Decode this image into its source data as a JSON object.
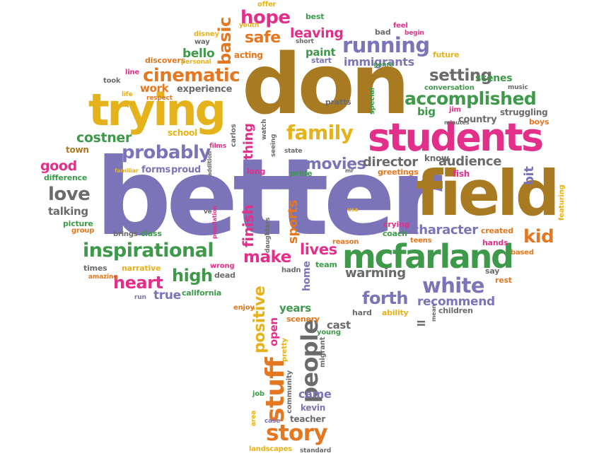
{
  "words": {
    "better": "better",
    "don": "don",
    "field": "field",
    "students": "students",
    "trying": "trying",
    "mcfarland": "mcfarland",
    "inspirational": "inspirational",
    "family": "family",
    "running": "running",
    "accomplished": "accomplished",
    "cinematic": "cinematic",
    "probably": "probably",
    "white": "white",
    "story": "story",
    "stuff": "stuff",
    "people": "people",
    "positive": "positive",
    "heart": "heart",
    "high": "high",
    "love": "love",
    "make": "make",
    "lives": "lives",
    "setting": "setting",
    "movies": "movies",
    "director": "director",
    "audience": "audience",
    "character": "character",
    "kid": "kid",
    "forth": "forth",
    "warming": "warming",
    "recommend": "recommend",
    "hope": "hope",
    "basic": "basic",
    "safe": "safe",
    "leaving": "leaving",
    "bello": "bello",
    "acting": "acting",
    "paint": "paint",
    "immigrants": "immigrants",
    "costner": "costner",
    "good": "good",
    "talking": "talking",
    "true": "true",
    "finish": "finish",
    "sports": "sports",
    "thing": "thing",
    "work": "work",
    "experience": "experience",
    "scenes": "scenes",
    "conversation": "conversation",
    "big": "big",
    "country": "country",
    "struggling": "struggling",
    "boys": "boys",
    "school": "school",
    "town": "town",
    "difference": "difference",
    "picture": "picture",
    "group": "group",
    "brings": "brings",
    "class": "class",
    "forms": "forms",
    "proud": "proud",
    "long": "long",
    "pride": "pride",
    "greetings": "greetings",
    "know": "know",
    "fish": "fish",
    "bit": "bit",
    "featuring": "featuring",
    "created": "created",
    "hands": "hands",
    "based": "based",
    "say": "say",
    "rest": "rest",
    "crying": "crying",
    "coach": "coach",
    "teens": "teens",
    "reason": "reason",
    "team": "team",
    "home": "home",
    "hadn": "hadn",
    "dead": "dead",
    "wrong": "wrong",
    "california": "california",
    "narrative": "narrative",
    "times": "times",
    "amazing": "amazing",
    "run": "run",
    "enjoy": "enjoy",
    "years": "years",
    "scenery": "scenery",
    "open": "open",
    "cast": "cast",
    "young": "young",
    "migrant": "migrant",
    "pretty": "pretty",
    "community": "community",
    "came": "came",
    "kevin": "kevin",
    "teacher": "teacher",
    "job": "job",
    "area": "area",
    "case": "case",
    "landscapes": "landscapes",
    "standard": "standard",
    "hard": "hard",
    "ability": "ability",
    "children": "children",
    "mean": "mean",
    "ll": "ll",
    "offer": "offer",
    "best": "best",
    "youth": "youth",
    "disney": "disney",
    "way": "way",
    "feel": "feel",
    "bad": "bad",
    "begin": "begin",
    "short": "short",
    "start": "start",
    "discovers": "discovers",
    "personal": "personal",
    "future": "future",
    "genre": "genre",
    "line": "line",
    "took": "took",
    "respect": "respect",
    "life": "life",
    "special": "special",
    "music": "music",
    "jim": "jim",
    "minutes": "minutes",
    "pratts": "pratts",
    "carlos": "carlos",
    "films": "films",
    "watch": "watch",
    "seeing": "seeing",
    "state": "state",
    "addition": "addition",
    "familiar": "familiar",
    "ve": "ve",
    "population": "population",
    "daughters": "daughters",
    "usa": "usa",
    "mr": "mr"
  }
}
